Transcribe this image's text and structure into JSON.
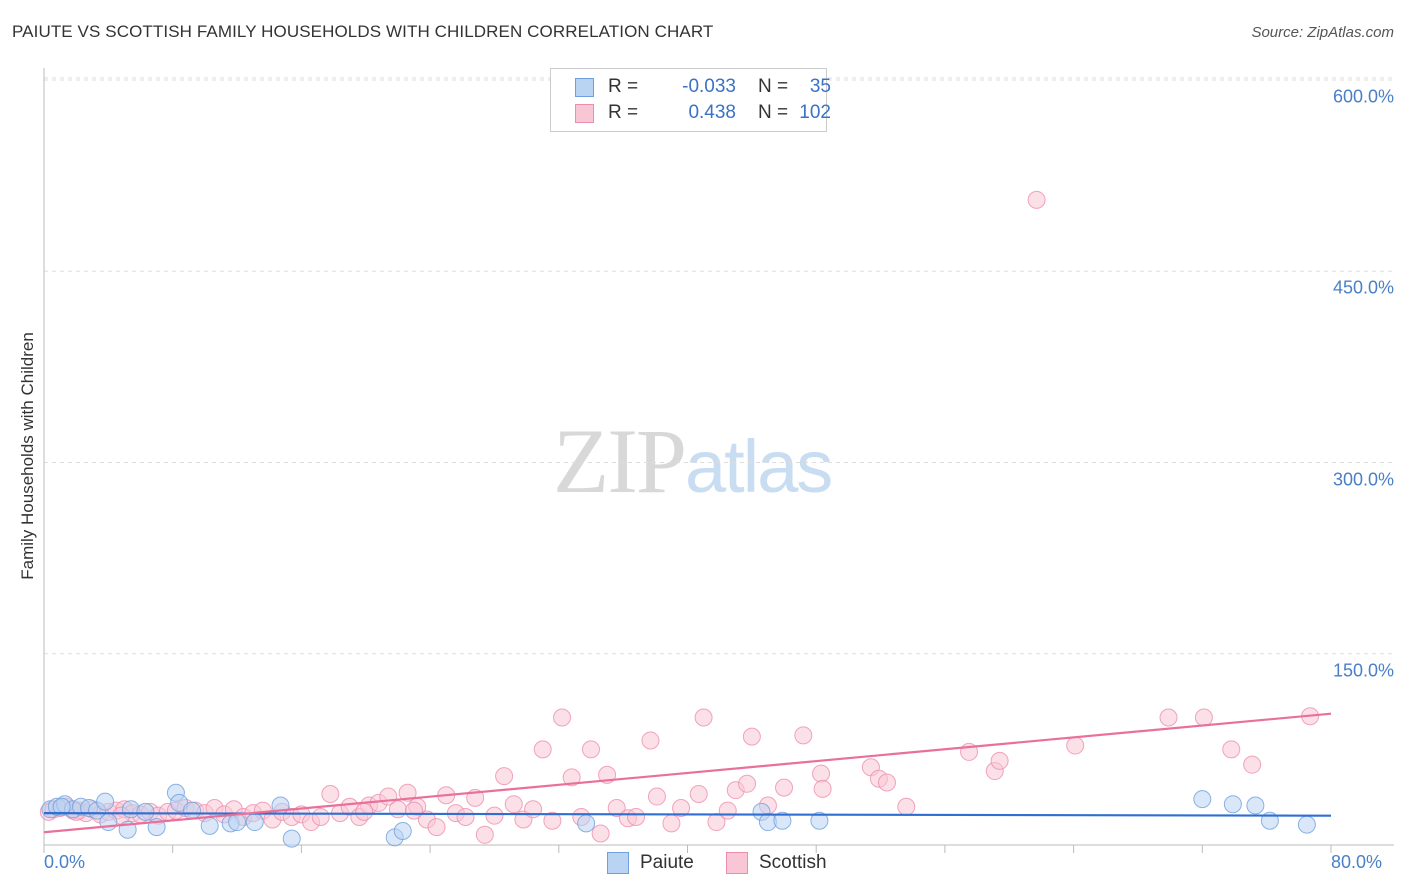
{
  "title": "PAIUTE VS SCOTTISH FAMILY HOUSEHOLDS WITH CHILDREN CORRELATION CHART",
  "source": "Source: ZipAtlas.com",
  "watermark": {
    "zip": "ZIP",
    "atlas": "atlas"
  },
  "legend": {
    "r_label": "R =",
    "n_label": "N =",
    "paiute": {
      "r": "-0.033",
      "n": "35"
    },
    "scottish": {
      "r": "0.438",
      "n": "102"
    }
  },
  "bottom_legend": {
    "paiute": "Paiute",
    "scottish": "Scottish"
  },
  "colors": {
    "paiute_fill": "#b9d3f3",
    "paiute_stroke": "#6fa0de",
    "paiute_line": "#2f6fd0",
    "scottish_fill": "#f9c6d5",
    "scottish_stroke": "#ec8faf",
    "scottish_line": "#e8709a",
    "tick_text": "#4a7fc8",
    "grid": "#dddddd"
  },
  "chart_data": {
    "type": "scatter",
    "title": "PAIUTE VS SCOTTISH FAMILY HOUSEHOLDS WITH CHILDREN CORRELATION CHART",
    "xlabel": "",
    "ylabel": "Family Households with Children",
    "xlim": [
      0,
      80
    ],
    "ylim": [
      0,
      600
    ],
    "x_tick_labels": [
      "0.0%",
      "80.0%"
    ],
    "y_ticks": [
      150,
      300,
      450,
      600
    ],
    "y_tick_labels": [
      "150.0%",
      "300.0%",
      "450.0%",
      "600.0%"
    ],
    "grid": true,
    "series": [
      {
        "name": "Paiute",
        "r": -0.033,
        "n": 35,
        "trend": [
          [
            0,
            25
          ],
          [
            80,
            23
          ]
        ],
        "points": [
          [
            0.4,
            28
          ],
          [
            0.8,
            30
          ],
          [
            1.3,
            32
          ],
          [
            1.8,
            28
          ],
          [
            2.3,
            30
          ],
          [
            2.8,
            29
          ],
          [
            3.3,
            27
          ],
          [
            3.8,
            34
          ],
          [
            4.0,
            18
          ],
          [
            5.2,
            12
          ],
          [
            5.4,
            28
          ],
          [
            6.3,
            26
          ],
          [
            7.0,
            14
          ],
          [
            8.2,
            41
          ],
          [
            8.4,
            33
          ],
          [
            9.2,
            27
          ],
          [
            10.3,
            15
          ],
          [
            11.6,
            17
          ],
          [
            12.0,
            18
          ],
          [
            13.1,
            18
          ],
          [
            14.7,
            31
          ],
          [
            15.4,
            5
          ],
          [
            21.8,
            6
          ],
          [
            22.3,
            11
          ],
          [
            33.7,
            17
          ],
          [
            44.6,
            26
          ],
          [
            45.0,
            18
          ],
          [
            45.9,
            19
          ],
          [
            48.2,
            19
          ],
          [
            72.0,
            36
          ],
          [
            73.9,
            32
          ],
          [
            75.3,
            31
          ],
          [
            76.2,
            19
          ],
          [
            78.5,
            16
          ],
          [
            1.1,
            30
          ]
        ]
      },
      {
        "name": "Scottish",
        "r": 0.438,
        "n": 102,
        "trend": [
          [
            0,
            10
          ],
          [
            80,
            103
          ]
        ],
        "points": [
          [
            0.3,
            26
          ],
          [
            0.6,
            28
          ],
          [
            1.0,
            29
          ],
          [
            1.4,
            30
          ],
          [
            1.8,
            27
          ],
          [
            2.2,
            27
          ],
          [
            2.6,
            25
          ],
          [
            3.0,
            28
          ],
          [
            3.5,
            24
          ],
          [
            4.0,
            26
          ],
          [
            4.5,
            27
          ],
          [
            5.0,
            28
          ],
          [
            5.5,
            25
          ],
          [
            6.0,
            24
          ],
          [
            6.6,
            26
          ],
          [
            7.1,
            23
          ],
          [
            7.7,
            26
          ],
          [
            8.2,
            27
          ],
          [
            8.8,
            29
          ],
          [
            9.4,
            27
          ],
          [
            10.0,
            25
          ],
          [
            10.6,
            29
          ],
          [
            11.2,
            24
          ],
          [
            11.8,
            28
          ],
          [
            12.4,
            22
          ],
          [
            13.0,
            25
          ],
          [
            13.6,
            27
          ],
          [
            14.2,
            20
          ],
          [
            14.8,
            26
          ],
          [
            15.4,
            22
          ],
          [
            16.0,
            24
          ],
          [
            16.6,
            18
          ],
          [
            17.2,
            22
          ],
          [
            17.8,
            40
          ],
          [
            18.4,
            25
          ],
          [
            19.0,
            30
          ],
          [
            19.6,
            22
          ],
          [
            20.2,
            31
          ],
          [
            20.8,
            33
          ],
          [
            21.4,
            38
          ],
          [
            22.0,
            28
          ],
          [
            22.6,
            41
          ],
          [
            23.2,
            30
          ],
          [
            23.8,
            20
          ],
          [
            24.4,
            14
          ],
          [
            25.0,
            39
          ],
          [
            25.6,
            25
          ],
          [
            26.2,
            22
          ],
          [
            26.8,
            37
          ],
          [
            27.4,
            8
          ],
          [
            28.0,
            23
          ],
          [
            28.6,
            54
          ],
          [
            29.2,
            32
          ],
          [
            29.8,
            20
          ],
          [
            30.4,
            28
          ],
          [
            31.0,
            75
          ],
          [
            31.6,
            19
          ],
          [
            32.2,
            100
          ],
          [
            32.8,
            53
          ],
          [
            33.4,
            22
          ],
          [
            34.0,
            75
          ],
          [
            34.6,
            9
          ],
          [
            35.0,
            55
          ],
          [
            35.6,
            29
          ],
          [
            36.3,
            21
          ],
          [
            36.8,
            22
          ],
          [
            37.7,
            82
          ],
          [
            38.1,
            38
          ],
          [
            39.0,
            17
          ],
          [
            39.6,
            29
          ],
          [
            40.7,
            40
          ],
          [
            41.0,
            100
          ],
          [
            41.8,
            18
          ],
          [
            42.5,
            27
          ],
          [
            43.0,
            43
          ],
          [
            43.7,
            48
          ],
          [
            44.0,
            85
          ],
          [
            45.0,
            31
          ],
          [
            46.0,
            45
          ],
          [
            47.2,
            86
          ],
          [
            48.3,
            56
          ],
          [
            48.4,
            44
          ],
          [
            51.4,
            61
          ],
          [
            51.9,
            52
          ],
          [
            52.4,
            49
          ],
          [
            53.6,
            30
          ],
          [
            57.5,
            73
          ],
          [
            59.1,
            58
          ],
          [
            59.4,
            66
          ],
          [
            61.7,
            506
          ],
          [
            64.1,
            78
          ],
          [
            69.9,
            100
          ],
          [
            72.1,
            100
          ],
          [
            73.8,
            75
          ],
          [
            75.1,
            63
          ],
          [
            78.7,
            101
          ],
          [
            23.0,
            27
          ],
          [
            19.9,
            26
          ],
          [
            2.0,
            26
          ],
          [
            4.8,
            23
          ]
        ]
      }
    ]
  }
}
